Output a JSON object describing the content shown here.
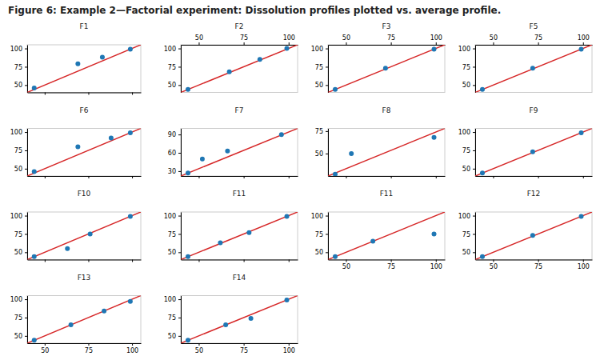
{
  "title": "Figure 6: Example 2—Factorial experiment: Dissolution profiles plotted vs. average profile.",
  "chart_data": [
    {
      "type": "scatter",
      "title": "F1",
      "x": [
        44,
        69,
        83,
        99
      ],
      "values": [
        46,
        79,
        88,
        99
      ],
      "xlim": [
        40,
        105
      ],
      "ylim": [
        40,
        105
      ],
      "xticks": [
        50,
        75,
        100
      ],
      "yticks": [
        50,
        75,
        100
      ],
      "tick_labels": "y"
    },
    {
      "type": "scatter",
      "title": "F6",
      "x": [
        44,
        69,
        88,
        99
      ],
      "values": [
        46,
        80,
        92,
        99
      ],
      "xlim": [
        40,
        105
      ],
      "ylim": [
        40,
        105
      ],
      "xticks": [
        50,
        75,
        100
      ],
      "yticks": [
        50,
        75,
        100
      ],
      "tick_labels": "y"
    },
    {
      "type": "scatter",
      "title": "F10",
      "x": [
        44,
        63,
        76,
        99
      ],
      "values": [
        44,
        55,
        75,
        99
      ],
      "xlim": [
        40,
        105
      ],
      "ylim": [
        40,
        105
      ],
      "xticks": [
        50,
        75,
        100
      ],
      "yticks": [
        50,
        75,
        100
      ],
      "tick_labels": "y"
    },
    {
      "type": "scatter",
      "title": "F13",
      "x": [
        44,
        65,
        84,
        99
      ],
      "values": [
        44,
        65,
        84,
        97
      ],
      "xlim": [
        40,
        105
      ],
      "ylim": [
        40,
        105
      ],
      "xticks": [
        50,
        75,
        100
      ],
      "yticks": [
        50,
        75,
        100
      ]
    },
    {
      "type": "scatter",
      "title": "F2",
      "x": [
        44,
        67,
        84,
        99
      ],
      "values": [
        44,
        68,
        85,
        100
      ],
      "xlim": [
        40,
        105
      ],
      "ylim": [
        40,
        105
      ],
      "xticks": [
        50,
        75,
        100
      ],
      "yticks": [
        50,
        75,
        100
      ]
    },
    {
      "type": "scatter",
      "title": "F7",
      "x": [
        44,
        52,
        66,
        96
      ],
      "values": [
        27,
        50,
        63,
        90
      ],
      "xlim": [
        40,
        105
      ],
      "ylim": [
        22,
        100
      ],
      "xticks": [
        50,
        75,
        100
      ],
      "yticks": [
        30,
        60,
        90
      ],
      "tick_labels": "y"
    },
    {
      "type": "scatter",
      "title": "F11",
      "x": [
        44,
        62,
        78,
        99
      ],
      "values": [
        44,
        63,
        77,
        99
      ],
      "xlim": [
        40,
        105
      ],
      "ylim": [
        40,
        105
      ],
      "xticks": [
        50,
        75,
        100
      ],
      "yticks": [
        50,
        75,
        100
      ],
      "tick_labels": "y"
    },
    {
      "type": "scatter",
      "title": "F14",
      "x": [
        44,
        65,
        79,
        99
      ],
      "values": [
        44,
        65,
        74,
        99
      ],
      "xlim": [
        40,
        105
      ],
      "ylim": [
        40,
        105
      ],
      "xticks": [
        50,
        75,
        100
      ],
      "yticks": [
        50,
        75,
        100
      ]
    },
    {
      "type": "scatter",
      "title": "F3",
      "x": [
        44,
        72,
        99
      ],
      "values": [
        44,
        73,
        99
      ],
      "xlim": [
        40,
        105
      ],
      "ylim": [
        40,
        105
      ],
      "xticks": [
        50,
        75,
        100
      ],
      "yticks": [
        50,
        75,
        100
      ]
    },
    {
      "type": "scatter",
      "title": "F8",
      "x": [
        44,
        53,
        99
      ],
      "values": [
        27,
        50,
        68
      ],
      "xlim": [
        40,
        105
      ],
      "ylim": [
        25,
        78
      ],
      "xticks": [
        50,
        75,
        100
      ],
      "yticks": [
        50,
        75
      ],
      "tick_labels": "y"
    },
    {
      "type": "scatter",
      "title": "F11",
      "x": [
        44,
        65,
        99
      ],
      "values": [
        44,
        65,
        75
      ],
      "xlim": [
        40,
        105
      ],
      "ylim": [
        40,
        105
      ],
      "xticks": [
        50,
        75,
        100
      ],
      "yticks": [
        50,
        75,
        100
      ]
    },
    {
      "type": "scatter",
      "title": "F5",
      "x": [
        44,
        72,
        99
      ],
      "values": [
        44,
        73,
        99
      ],
      "xlim": [
        40,
        105
      ],
      "ylim": [
        40,
        105
      ],
      "xticks": [
        50,
        75,
        100
      ],
      "yticks": [
        50,
        75,
        100
      ]
    },
    {
      "type": "scatter",
      "title": "F9",
      "x": [
        44,
        72,
        99
      ],
      "values": [
        44,
        73,
        99
      ],
      "xlim": [
        40,
        105
      ],
      "ylim": [
        40,
        105
      ],
      "xticks": [
        50,
        75,
        100
      ],
      "yticks": [
        50,
        75,
        100
      ],
      "tick_labels": "y"
    },
    {
      "type": "scatter",
      "title": "F12",
      "x": [
        44,
        72,
        99
      ],
      "values": [
        44,
        73,
        99
      ],
      "xlim": [
        40,
        105
      ],
      "ylim": [
        40,
        105
      ],
      "xticks": [
        50,
        75,
        100
      ],
      "yticks": [
        50,
        75,
        100
      ]
    }
  ]
}
